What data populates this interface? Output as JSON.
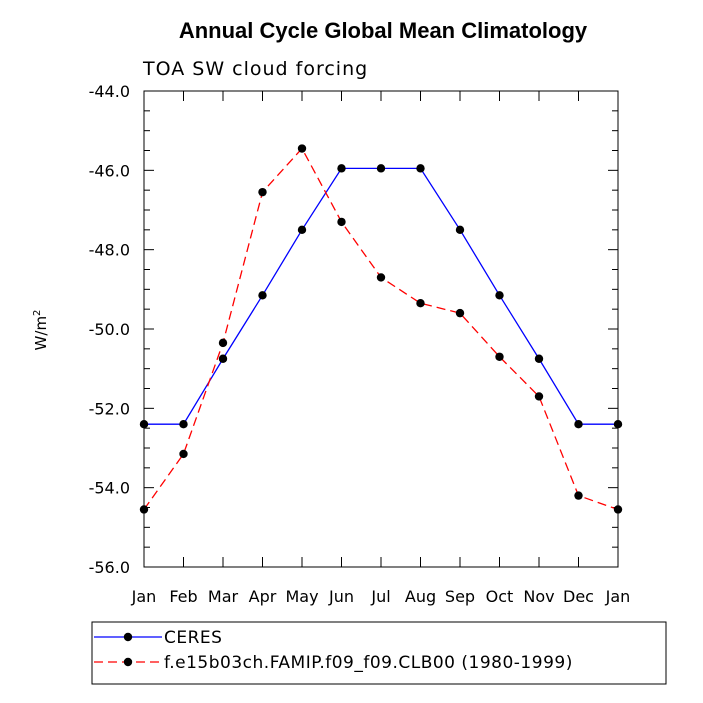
{
  "chart_data": {
    "type": "line",
    "title": "Annual Cycle Global Mean Climatology",
    "subtitle": "TOA SW cloud forcing",
    "ylabel": "W/m",
    "ylabel_sup": "2",
    "xlabel": "",
    "ylim": [
      -56.0,
      -44.0
    ],
    "yticks": [
      "-44.0",
      "-46.0",
      "-48.0",
      "-50.0",
      "-52.0",
      "-54.0",
      "-56.0"
    ],
    "yticks_values": [
      -44,
      -46,
      -48,
      -50,
      -52,
      -54,
      -56
    ],
    "categories": [
      "Jan",
      "Feb",
      "Mar",
      "Apr",
      "May",
      "Jun",
      "Jul",
      "Aug",
      "Sep",
      "Oct",
      "Nov",
      "Dec",
      "Jan"
    ],
    "grid": false,
    "legend_position": "bottom",
    "series": [
      {
        "name": "CERES",
        "color": "#0000ff",
        "style": "solid",
        "values": [
          -52.4,
          -52.4,
          -50.75,
          -49.15,
          -47.5,
          -45.95,
          -45.95,
          -45.95,
          -47.5,
          -49.15,
          -50.75,
          -52.4,
          -52.4
        ]
      },
      {
        "name": "f.e15b03ch.FAMIP.f09_f09.CLB00 (1980-1999)",
        "color": "#ff0000",
        "style": "dashed",
        "values": [
          -54.55,
          -53.15,
          -50.35,
          -46.55,
          -45.45,
          -47.3,
          -48.7,
          -49.35,
          -49.6,
          -50.7,
          -51.7,
          -54.2,
          -54.55
        ]
      }
    ]
  }
}
